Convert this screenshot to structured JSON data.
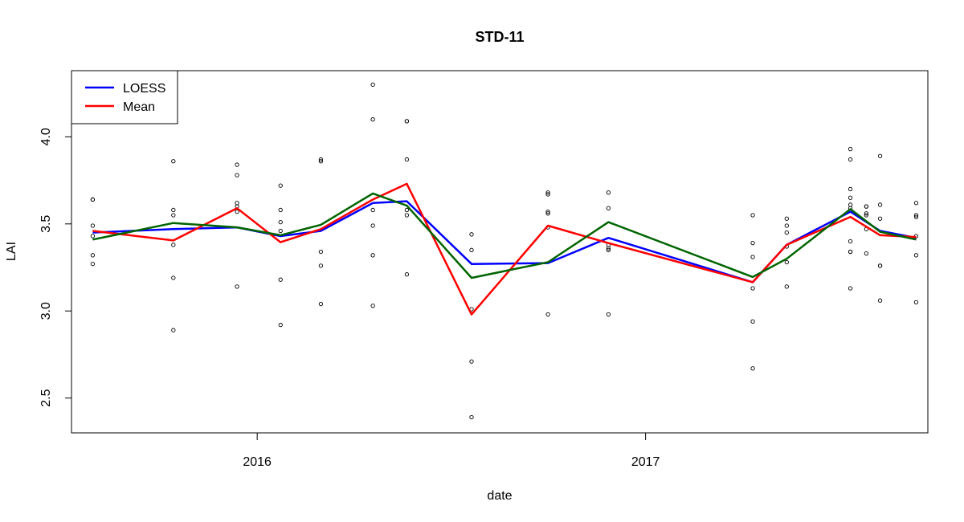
{
  "chart_data": {
    "type": "line",
    "title": "STD-11",
    "xlabel": "date",
    "ylabel": "LAI",
    "xlim": [
      "2015-07-10",
      "2017-09-24"
    ],
    "ylim": [
      2.3,
      4.38
    ],
    "x_ticks": [
      {
        "date": "2016-01-01",
        "label": "2016"
      },
      {
        "date": "2017-01-01",
        "label": "2017"
      }
    ],
    "y_ticks": [
      {
        "value": 2.5,
        "label": "2.5"
      },
      {
        "value": 3.0,
        "label": "3.0"
      },
      {
        "value": 3.5,
        "label": "3.5"
      },
      {
        "value": 4.0,
        "label": "4.0"
      }
    ],
    "grid": false,
    "legend": {
      "position": "top-left",
      "entries": [
        {
          "label": "LOESS",
          "color": "#0000ff"
        },
        {
          "label": "Mean",
          "color": "#ff0000"
        }
      ]
    },
    "series": [
      {
        "name": "LOESS",
        "color": "#0000ff",
        "points": [
          [
            "2015-07-30",
            3.45
          ],
          [
            "2015-10-14",
            3.47
          ],
          [
            "2015-12-13",
            3.48
          ],
          [
            "2016-01-23",
            3.43
          ],
          [
            "2016-03-01",
            3.46
          ],
          [
            "2016-04-19",
            3.62
          ],
          [
            "2016-05-21",
            3.63
          ],
          [
            "2016-07-21",
            3.27
          ],
          [
            "2016-10-01",
            3.275
          ],
          [
            "2016-11-27",
            3.42
          ],
          [
            "2017-04-12",
            3.165
          ],
          [
            "2017-05-14",
            3.38
          ],
          [
            "2017-07-13",
            3.57
          ],
          [
            "2017-08-10",
            3.46
          ],
          [
            "2017-09-13",
            3.42
          ]
        ]
      },
      {
        "name": "Mean",
        "color": "#ff0000",
        "points": [
          [
            "2015-07-30",
            3.46
          ],
          [
            "2015-10-14",
            3.405
          ],
          [
            "2015-12-13",
            3.59
          ],
          [
            "2016-01-23",
            3.395
          ],
          [
            "2016-03-01",
            3.47
          ],
          [
            "2016-04-19",
            3.64
          ],
          [
            "2016-05-21",
            3.73
          ],
          [
            "2016-07-21",
            2.98
          ],
          [
            "2016-10-01",
            3.49
          ],
          [
            "2016-11-27",
            3.39
          ],
          [
            "2017-04-12",
            3.165
          ],
          [
            "2017-05-14",
            3.38
          ],
          [
            "2017-07-13",
            3.54
          ],
          [
            "2017-08-10",
            3.435
          ],
          [
            "2017-09-13",
            3.425
          ]
        ]
      },
      {
        "color": "#006400",
        "points": [
          [
            "2015-07-30",
            3.41
          ],
          [
            "2015-10-14",
            3.505
          ],
          [
            "2015-12-13",
            3.48
          ],
          [
            "2016-01-23",
            3.435
          ],
          [
            "2016-03-01",
            3.495
          ],
          [
            "2016-04-19",
            3.675
          ],
          [
            "2016-05-21",
            3.605
          ],
          [
            "2016-07-21",
            3.19
          ],
          [
            "2016-10-01",
            3.28
          ],
          [
            "2016-11-27",
            3.51
          ],
          [
            "2017-04-12",
            3.195
          ],
          [
            "2017-05-14",
            3.3
          ],
          [
            "2017-07-13",
            3.585
          ],
          [
            "2017-08-10",
            3.455
          ],
          [
            "2017-09-13",
            3.41
          ]
        ]
      }
    ],
    "scatter_points": [
      [
        "2015-07-30",
        3.64
      ],
      [
        "2015-07-30",
        3.64
      ],
      [
        "2015-07-30",
        3.49
      ],
      [
        "2015-07-30",
        3.43
      ],
      [
        "2015-07-30",
        3.32
      ],
      [
        "2015-07-30",
        3.27
      ],
      [
        "2015-10-14",
        3.86
      ],
      [
        "2015-10-14",
        3.58
      ],
      [
        "2015-10-14",
        3.55
      ],
      [
        "2015-10-14",
        3.38
      ],
      [
        "2015-10-14",
        3.19
      ],
      [
        "2015-10-14",
        2.89
      ],
      [
        "2015-12-13",
        3.84
      ],
      [
        "2015-12-13",
        3.78
      ],
      [
        "2015-12-13",
        3.62
      ],
      [
        "2015-12-13",
        3.6
      ],
      [
        "2015-12-13",
        3.57
      ],
      [
        "2015-12-13",
        3.14
      ],
      [
        "2016-01-23",
        3.72
      ],
      [
        "2016-01-23",
        3.58
      ],
      [
        "2016-01-23",
        3.51
      ],
      [
        "2016-01-23",
        3.46
      ],
      [
        "2016-01-23",
        3.18
      ],
      [
        "2016-01-23",
        2.92
      ],
      [
        "2016-03-01",
        3.87
      ],
      [
        "2016-03-01",
        3.86
      ],
      [
        "2016-03-01",
        3.34
      ],
      [
        "2016-03-01",
        3.26
      ],
      [
        "2016-03-01",
        3.04
      ],
      [
        "2016-04-19",
        4.3
      ],
      [
        "2016-04-19",
        4.1
      ],
      [
        "2016-04-19",
        3.58
      ],
      [
        "2016-04-19",
        3.49
      ],
      [
        "2016-04-19",
        3.32
      ],
      [
        "2016-04-19",
        3.03
      ],
      [
        "2016-05-21",
        4.09
      ],
      [
        "2016-05-21",
        4.09
      ],
      [
        "2016-05-21",
        3.87
      ],
      [
        "2016-05-21",
        3.58
      ],
      [
        "2016-05-21",
        3.55
      ],
      [
        "2016-05-21",
        3.21
      ],
      [
        "2016-07-21",
        3.44
      ],
      [
        "2016-07-21",
        3.35
      ],
      [
        "2016-07-21",
        3.01
      ],
      [
        "2016-07-21",
        2.71
      ],
      [
        "2016-07-21",
        2.39
      ],
      [
        "2016-10-01",
        3.68
      ],
      [
        "2016-10-01",
        3.67
      ],
      [
        "2016-10-01",
        3.57
      ],
      [
        "2016-10-01",
        3.56
      ],
      [
        "2016-10-01",
        3.48
      ],
      [
        "2016-10-01",
        2.98
      ],
      [
        "2016-11-27",
        3.68
      ],
      [
        "2016-11-27",
        3.59
      ],
      [
        "2016-11-27",
        3.38
      ],
      [
        "2016-11-27",
        3.36
      ],
      [
        "2016-11-27",
        3.35
      ],
      [
        "2016-11-27",
        2.98
      ],
      [
        "2017-04-12",
        3.55
      ],
      [
        "2017-04-12",
        3.39
      ],
      [
        "2017-04-12",
        3.31
      ],
      [
        "2017-04-12",
        3.13
      ],
      [
        "2017-04-12",
        2.94
      ],
      [
        "2017-04-12",
        2.67
      ],
      [
        "2017-05-14",
        3.53
      ],
      [
        "2017-05-14",
        3.49
      ],
      [
        "2017-05-14",
        3.45
      ],
      [
        "2017-05-14",
        3.37
      ],
      [
        "2017-05-14",
        3.28
      ],
      [
        "2017-05-14",
        3.14
      ],
      [
        "2017-07-13",
        3.93
      ],
      [
        "2017-07-13",
        3.87
      ],
      [
        "2017-07-13",
        3.7
      ],
      [
        "2017-07-13",
        3.65
      ],
      [
        "2017-07-13",
        3.61
      ],
      [
        "2017-07-13",
        3.59
      ],
      [
        "2017-07-13",
        3.4
      ],
      [
        "2017-07-13",
        3.34
      ],
      [
        "2017-07-13",
        3.34
      ],
      [
        "2017-07-13",
        3.13
      ],
      [
        "2017-07-28",
        3.6
      ],
      [
        "2017-07-28",
        3.6
      ],
      [
        "2017-07-28",
        3.56
      ],
      [
        "2017-07-28",
        3.55
      ],
      [
        "2017-07-28",
        3.47
      ],
      [
        "2017-07-28",
        3.33
      ],
      [
        "2017-08-10",
        3.89
      ],
      [
        "2017-08-10",
        3.61
      ],
      [
        "2017-08-10",
        3.53
      ],
      [
        "2017-08-10",
        3.26
      ],
      [
        "2017-08-10",
        3.26
      ],
      [
        "2017-08-10",
        3.06
      ],
      [
        "2017-09-13",
        3.62
      ],
      [
        "2017-09-13",
        3.55
      ],
      [
        "2017-09-13",
        3.54
      ],
      [
        "2017-09-13",
        3.43
      ],
      [
        "2017-09-13",
        3.32
      ],
      [
        "2017-09-13",
        3.05
      ]
    ]
  }
}
